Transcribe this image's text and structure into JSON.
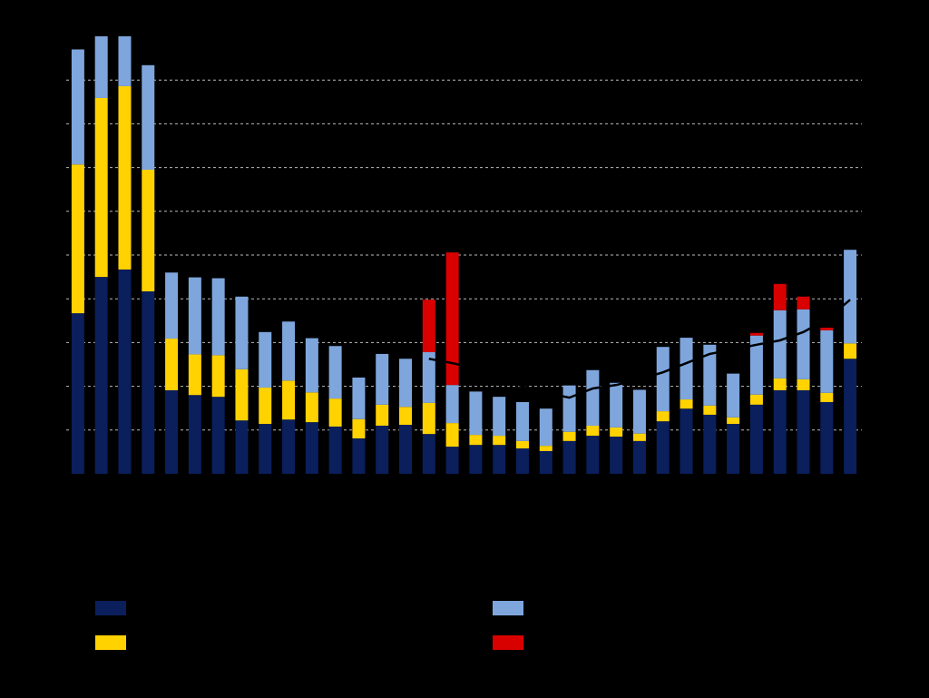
{
  "chart_data": {
    "type": "stacked-bar",
    "categories": [
      null,
      null,
      null,
      null,
      null,
      null,
      null,
      null,
      null,
      null,
      null,
      null,
      null,
      null,
      null,
      null,
      null,
      null,
      null,
      null,
      null,
      null,
      null,
      null,
      null,
      null,
      null,
      null,
      null,
      null,
      null,
      null,
      null,
      null
    ],
    "series": [
      {
        "color": "#0a1f5c",
        "values": [
          3.67,
          4.5,
          4.67,
          4.17,
          1.91,
          1.8,
          1.76,
          1.22,
          1.14,
          1.24,
          1.18,
          1.08,
          0.81,
          1.1,
          1.12,
          0.91,
          0.62,
          0.66,
          0.66,
          0.58,
          0.52,
          0.75,
          0.87,
          0.85,
          0.75,
          1.2,
          1.49,
          1.35,
          1.14,
          1.58,
          1.91,
          1.91,
          1.64,
          2.63
        ]
      },
      {
        "color": "#ffd200",
        "values": [
          3.4,
          4.09,
          4.19,
          2.78,
          1.18,
          0.93,
          0.95,
          1.17,
          0.83,
          0.89,
          0.68,
          0.64,
          0.44,
          0.48,
          0.41,
          0.71,
          0.54,
          0.23,
          0.21,
          0.17,
          0.12,
          0.21,
          0.23,
          0.21,
          0.17,
          0.23,
          0.21,
          0.21,
          0.15,
          0.23,
          0.27,
          0.25,
          0.21,
          0.35
        ]
      },
      {
        "color": "#7ea6dc",
        "values": [
          2.63,
          1.41,
          1.14,
          2.39,
          1.51,
          1.76,
          1.76,
          1.66,
          1.27,
          1.35,
          1.24,
          1.2,
          0.95,
          1.16,
          1.1,
          1.16,
          0.87,
          0.99,
          0.89,
          0.89,
          0.85,
          1.06,
          1.27,
          1.02,
          1.0,
          1.47,
          1.41,
          1.39,
          1.0,
          1.35,
          1.56,
          1.6,
          1.43,
          2.14
        ]
      },
      {
        "color": "#d90000",
        "values": [
          0,
          0,
          0,
          0,
          0,
          0,
          0,
          0,
          0,
          0,
          0,
          0,
          0,
          0,
          0,
          1.2,
          3.03,
          0,
          0,
          0,
          0,
          0,
          0,
          0,
          0,
          0,
          0,
          0,
          0,
          0.06,
          0.6,
          0.29,
          0.06,
          0
        ]
      }
    ],
    "line": {
      "color": "#000000",
      "values": [
        null,
        null,
        null,
        null,
        null,
        null,
        null,
        null,
        null,
        null,
        null,
        null,
        null,
        null,
        null,
        2.63,
        2.53,
        2.4,
        2.2,
        2.0,
        1.85,
        1.74,
        1.95,
        2.03,
        2.16,
        2.32,
        2.53,
        2.74,
        2.84,
        2.95,
        3.05,
        3.24,
        3.53,
        3.98
      ]
    },
    "ylim": [
      0,
      10
    ],
    "yticks": [
      1,
      2,
      3,
      4,
      5,
      6,
      7,
      8,
      9
    ],
    "grid": true
  }
}
